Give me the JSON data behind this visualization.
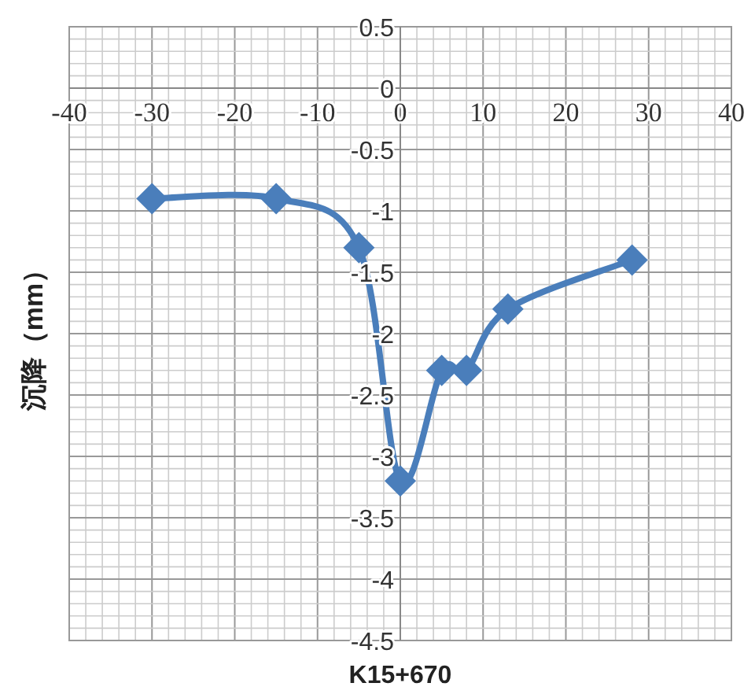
{
  "chart_data": {
    "type": "line",
    "xlabel": "K15+670",
    "ylabel": "沉降（mm）",
    "x": [
      -30,
      -15,
      -5,
      0,
      5,
      8,
      13,
      28
    ],
    "series": [
      {
        "color": "#4a7ebb",
        "values": [
          -0.9,
          -0.9,
          -1.3,
          -3.2,
          -2.3,
          -2.3,
          -1.8,
          -1.4
        ]
      }
    ],
    "xlim": [
      -40,
      40
    ],
    "xticks": [
      -40,
      -30,
      -20,
      -10,
      0,
      10,
      20,
      30,
      40
    ],
    "ylim": [
      -4.5,
      0.5
    ],
    "yticks": [
      -4.5,
      -4,
      -3.5,
      -3,
      -2.5,
      -2,
      -1.5,
      -1,
      -0.5,
      0,
      0.5
    ],
    "grid": true,
    "marker": "diamond",
    "line_style": "solid"
  }
}
